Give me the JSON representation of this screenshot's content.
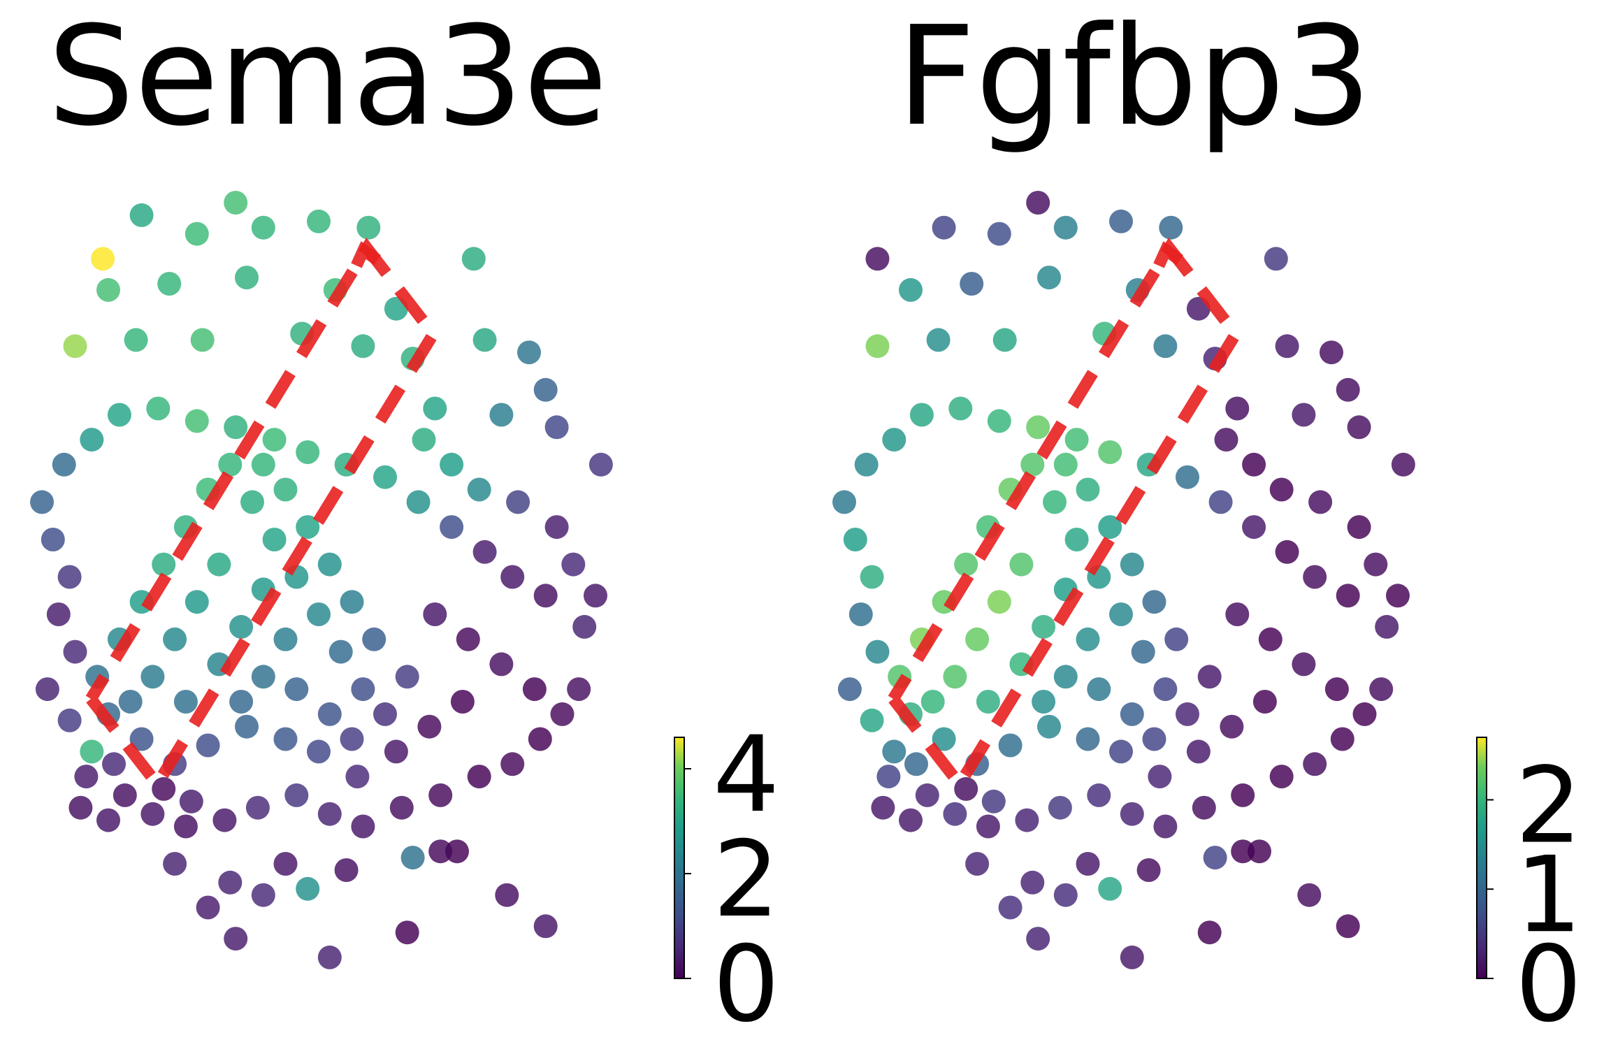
{
  "chart_data": [
    {
      "type": "scatter",
      "title": "Sema3e",
      "colormap": "viridis",
      "point_alpha": 0.82,
      "colorbar": {
        "min": 0,
        "max": 4.6,
        "ticks": [
          0,
          2,
          4
        ],
        "tick_labels": [
          "0",
          "2",
          "4"
        ]
      },
      "points": [
        [
          0.18,
          0.02,
          3.1
        ],
        [
          0.35,
          0.0,
          3.6
        ],
        [
          0.5,
          0.03,
          3.4
        ],
        [
          0.59,
          0.04,
          3.3
        ],
        [
          0.28,
          0.05,
          3.5
        ],
        [
          0.4,
          0.04,
          3.4
        ],
        [
          0.11,
          0.09,
          4.6
        ],
        [
          0.78,
          0.09,
          3.2
        ],
        [
          0.12,
          0.14,
          3.6
        ],
        [
          0.23,
          0.13,
          3.4
        ],
        [
          0.37,
          0.12,
          3.3
        ],
        [
          0.53,
          0.14,
          3.5
        ],
        [
          0.64,
          0.17,
          3.0
        ],
        [
          0.06,
          0.23,
          4.2
        ],
        [
          0.17,
          0.22,
          3.4
        ],
        [
          0.29,
          0.22,
          3.6
        ],
        [
          0.47,
          0.21,
          3.3
        ],
        [
          0.58,
          0.23,
          3.2
        ],
        [
          0.67,
          0.25,
          3.3
        ],
        [
          0.8,
          0.22,
          3.1
        ],
        [
          0.88,
          0.24,
          2.0
        ],
        [
          0.91,
          0.3,
          1.6
        ],
        [
          0.71,
          0.33,
          3.0
        ],
        [
          0.83,
          0.34,
          2.2
        ],
        [
          0.93,
          0.36,
          1.1
        ],
        [
          1.01,
          0.42,
          0.8
        ],
        [
          0.69,
          0.38,
          3.2
        ],
        [
          0.74,
          0.42,
          2.9
        ],
        [
          0.79,
          0.46,
          2.4
        ],
        [
          0.86,
          0.48,
          1.0
        ],
        [
          0.93,
          0.52,
          0.4
        ],
        [
          0.96,
          0.58,
          0.6
        ],
        [
          1.0,
          0.63,
          0.3
        ],
        [
          0.98,
          0.68,
          0.5
        ],
        [
          0.91,
          0.63,
          0.2
        ],
        [
          0.85,
          0.6,
          0.3
        ],
        [
          0.8,
          0.56,
          0.4
        ],
        [
          0.74,
          0.52,
          1.2
        ],
        [
          0.68,
          0.48,
          2.6
        ],
        [
          0.62,
          0.44,
          3.0
        ],
        [
          0.55,
          0.42,
          3.2
        ],
        [
          0.48,
          0.4,
          3.4
        ],
        [
          0.42,
          0.38,
          3.5
        ],
        [
          0.35,
          0.36,
          3.3
        ],
        [
          0.28,
          0.35,
          3.6
        ],
        [
          0.21,
          0.33,
          3.4
        ],
        [
          0.14,
          0.34,
          3.0
        ],
        [
          0.09,
          0.38,
          2.8
        ],
        [
          0.04,
          0.42,
          1.8
        ],
        [
          0.0,
          0.48,
          1.6
        ],
        [
          0.02,
          0.54,
          1.2
        ],
        [
          0.05,
          0.6,
          0.8
        ],
        [
          0.03,
          0.66,
          0.4
        ],
        [
          0.06,
          0.72,
          0.6
        ],
        [
          0.01,
          0.78,
          0.5
        ],
        [
          0.05,
          0.83,
          0.9
        ],
        [
          0.09,
          0.88,
          3.4
        ],
        [
          0.13,
          0.9,
          0.6
        ],
        [
          0.08,
          0.92,
          0.4
        ],
        [
          0.15,
          0.95,
          0.2
        ],
        [
          0.2,
          0.98,
          0.3
        ],
        [
          0.26,
          1.0,
          0.2
        ],
        [
          0.33,
          0.99,
          0.3
        ],
        [
          0.39,
          0.97,
          0.6
        ],
        [
          0.46,
          0.95,
          0.8
        ],
        [
          0.52,
          0.98,
          0.5
        ],
        [
          0.58,
          1.0,
          0.3
        ],
        [
          0.65,
          0.97,
          0.2
        ],
        [
          0.72,
          0.95,
          0.1
        ],
        [
          0.79,
          0.92,
          0.0
        ],
        [
          0.85,
          0.9,
          0.1
        ],
        [
          0.9,
          0.86,
          0.0
        ],
        [
          0.94,
          0.82,
          0.1
        ],
        [
          0.97,
          0.78,
          0.2
        ],
        [
          0.89,
          0.78,
          0.0
        ],
        [
          0.83,
          0.74,
          0.2
        ],
        [
          0.77,
          0.7,
          0.1
        ],
        [
          0.71,
          0.66,
          0.3
        ],
        [
          0.76,
          0.8,
          0.0
        ],
        [
          0.7,
          0.84,
          0.1
        ],
        [
          0.64,
          0.88,
          0.3
        ],
        [
          0.57,
          0.92,
          0.6
        ],
        [
          0.5,
          0.88,
          1.1
        ],
        [
          0.44,
          0.86,
          1.4
        ],
        [
          0.37,
          0.84,
          1.6
        ],
        [
          0.3,
          0.87,
          1.2
        ],
        [
          0.24,
          0.9,
          0.9
        ],
        [
          0.18,
          0.86,
          1.3
        ],
        [
          0.12,
          0.82,
          1.7
        ],
        [
          0.1,
          0.76,
          1.9
        ],
        [
          0.14,
          0.7,
          2.4
        ],
        [
          0.18,
          0.64,
          2.9
        ],
        [
          0.22,
          0.58,
          3.2
        ],
        [
          0.26,
          0.52,
          3.3
        ],
        [
          0.3,
          0.46,
          3.5
        ],
        [
          0.34,
          0.42,
          3.4
        ],
        [
          0.38,
          0.48,
          3.2
        ],
        [
          0.42,
          0.54,
          3.0
        ],
        [
          0.46,
          0.6,
          2.7
        ],
        [
          0.5,
          0.66,
          2.4
        ],
        [
          0.54,
          0.72,
          1.8
        ],
        [
          0.58,
          0.78,
          1.2
        ],
        [
          0.62,
          0.82,
          0.7
        ],
        [
          0.66,
          0.76,
          0.9
        ],
        [
          0.6,
          0.7,
          1.5
        ],
        [
          0.56,
          0.64,
          2.2
        ],
        [
          0.52,
          0.58,
          2.6
        ],
        [
          0.48,
          0.52,
          3.0
        ],
        [
          0.44,
          0.46,
          3.3
        ],
        [
          0.4,
          0.42,
          3.4
        ],
        [
          0.32,
          0.58,
          3.1
        ],
        [
          0.28,
          0.64,
          2.8
        ],
        [
          0.24,
          0.7,
          2.4
        ],
        [
          0.2,
          0.76,
          2.1
        ],
        [
          0.16,
          0.8,
          1.8
        ],
        [
          0.26,
          0.8,
          1.9
        ],
        [
          0.32,
          0.74,
          2.3
        ],
        [
          0.36,
          0.68,
          2.6
        ],
        [
          0.4,
          0.62,
          2.8
        ],
        [
          0.44,
          0.7,
          2.2
        ],
        [
          0.4,
          0.76,
          1.9
        ],
        [
          0.36,
          0.8,
          1.7
        ],
        [
          0.46,
          0.78,
          1.6
        ],
        [
          0.52,
          0.82,
          1.3
        ],
        [
          0.56,
          0.86,
          0.9
        ],
        [
          0.27,
          0.96,
          0.4
        ],
        [
          0.44,
          1.06,
          0.3
        ],
        [
          0.55,
          1.07,
          0.2
        ],
        [
          0.34,
          1.09,
          0.5
        ],
        [
          0.72,
          1.04,
          0.1
        ],
        [
          0.84,
          1.11,
          0.2
        ],
        [
          0.91,
          1.16,
          0.3
        ],
        [
          0.07,
          0.97,
          0.2
        ],
        [
          0.35,
          1.18,
          0.4
        ],
        [
          0.52,
          1.21,
          0.5
        ],
        [
          0.66,
          1.17,
          0.0
        ],
        [
          0.75,
          1.04,
          0.0
        ],
        [
          0.4,
          1.11,
          0.6
        ],
        [
          0.48,
          1.1,
          2.6
        ],
        [
          0.67,
          1.05,
          1.9
        ],
        [
          0.24,
          1.06,
          0.5
        ],
        [
          0.3,
          1.13,
          0.4
        ],
        [
          0.22,
          0.94,
          0.1
        ],
        [
          0.12,
          0.99,
          0.3
        ]
      ]
    },
    {
      "type": "scatter",
      "title": "Fgfbp3",
      "colormap": "viridis",
      "point_alpha": 0.82,
      "colorbar": {
        "min": 0,
        "max": 2.7,
        "ticks": [
          0,
          1,
          2
        ],
        "tick_labels": [
          "0",
          "1",
          "2"
        ]
      },
      "points": [
        [
          0.35,
          0.0,
          0.1
        ],
        [
          0.18,
          0.04,
          0.6
        ],
        [
          0.28,
          0.05,
          0.7
        ],
        [
          0.5,
          0.03,
          0.9
        ],
        [
          0.59,
          0.04,
          1.0
        ],
        [
          0.78,
          0.09,
          0.5
        ],
        [
          0.06,
          0.09,
          0.1
        ],
        [
          0.4,
          0.04,
          1.3
        ],
        [
          0.12,
          0.14,
          1.6
        ],
        [
          0.23,
          0.13,
          0.9
        ],
        [
          0.37,
          0.12,
          1.4
        ],
        [
          0.53,
          0.14,
          1.3
        ],
        [
          0.64,
          0.17,
          0.2
        ],
        [
          0.06,
          0.23,
          2.4
        ],
        [
          0.17,
          0.22,
          1.5
        ],
        [
          0.29,
          0.22,
          1.8
        ],
        [
          0.47,
          0.21,
          2.0
        ],
        [
          0.58,
          0.23,
          1.2
        ],
        [
          0.67,
          0.25,
          0.3
        ],
        [
          0.8,
          0.23,
          0.2
        ],
        [
          0.88,
          0.24,
          0.1
        ],
        [
          0.91,
          0.3,
          0.1
        ],
        [
          0.71,
          0.33,
          0.1
        ],
        [
          0.83,
          0.34,
          0.2
        ],
        [
          0.93,
          0.36,
          0.1
        ],
        [
          1.01,
          0.42,
          0.1
        ],
        [
          0.69,
          0.38,
          0.1
        ],
        [
          0.74,
          0.42,
          0.0
        ],
        [
          0.79,
          0.46,
          0.0
        ],
        [
          0.86,
          0.48,
          0.1
        ],
        [
          0.93,
          0.52,
          0.0
        ],
        [
          0.96,
          0.58,
          0.1
        ],
        [
          1.0,
          0.63,
          0.0
        ],
        [
          0.98,
          0.68,
          0.2
        ],
        [
          0.91,
          0.63,
          0.0
        ],
        [
          0.85,
          0.6,
          0.1
        ],
        [
          0.8,
          0.56,
          0.0
        ],
        [
          0.74,
          0.52,
          0.2
        ],
        [
          0.68,
          0.48,
          0.6
        ],
        [
          0.62,
          0.44,
          1.1
        ],
        [
          0.55,
          0.42,
          1.8
        ],
        [
          0.48,
          0.4,
          2.2
        ],
        [
          0.42,
          0.38,
          2.1
        ],
        [
          0.35,
          0.36,
          2.3
        ],
        [
          0.28,
          0.35,
          2.0
        ],
        [
          0.21,
          0.33,
          1.9
        ],
        [
          0.14,
          0.34,
          1.8
        ],
        [
          0.09,
          0.38,
          1.6
        ],
        [
          0.04,
          0.42,
          1.4
        ],
        [
          0.0,
          0.48,
          1.2
        ],
        [
          0.02,
          0.54,
          1.7
        ],
        [
          0.05,
          0.6,
          1.9
        ],
        [
          0.03,
          0.66,
          1.1
        ],
        [
          0.06,
          0.72,
          1.4
        ],
        [
          0.01,
          0.78,
          0.9
        ],
        [
          0.05,
          0.83,
          1.8
        ],
        [
          0.09,
          0.88,
          1.2
        ],
        [
          0.13,
          0.9,
          1.0
        ],
        [
          0.08,
          0.92,
          0.6
        ],
        [
          0.15,
          0.95,
          0.3
        ],
        [
          0.2,
          0.98,
          0.4
        ],
        [
          0.26,
          1.0,
          0.2
        ],
        [
          0.33,
          0.99,
          0.3
        ],
        [
          0.39,
          0.97,
          0.5
        ],
        [
          0.46,
          0.95,
          0.4
        ],
        [
          0.52,
          0.98,
          0.3
        ],
        [
          0.58,
          1.0,
          0.2
        ],
        [
          0.65,
          0.97,
          0.1
        ],
        [
          0.72,
          0.95,
          0.0
        ],
        [
          0.79,
          0.92,
          0.0
        ],
        [
          0.85,
          0.9,
          0.1
        ],
        [
          0.9,
          0.86,
          0.0
        ],
        [
          0.94,
          0.82,
          0.0
        ],
        [
          0.97,
          0.78,
          0.1
        ],
        [
          0.89,
          0.78,
          0.0
        ],
        [
          0.83,
          0.74,
          0.1
        ],
        [
          0.77,
          0.7,
          0.0
        ],
        [
          0.71,
          0.66,
          0.1
        ],
        [
          0.76,
          0.8,
          0.0
        ],
        [
          0.7,
          0.84,
          0.1
        ],
        [
          0.64,
          0.88,
          0.2
        ],
        [
          0.57,
          0.92,
          0.3
        ],
        [
          0.5,
          0.88,
          0.6
        ],
        [
          0.44,
          0.86,
          1.0
        ],
        [
          0.37,
          0.84,
          1.4
        ],
        [
          0.3,
          0.87,
          1.1
        ],
        [
          0.24,
          0.9,
          0.9
        ],
        [
          0.18,
          0.86,
          1.5
        ],
        [
          0.12,
          0.82,
          1.9
        ],
        [
          0.1,
          0.76,
          2.2
        ],
        [
          0.14,
          0.7,
          2.4
        ],
        [
          0.18,
          0.64,
          2.3
        ],
        [
          0.22,
          0.58,
          2.2
        ],
        [
          0.26,
          0.52,
          2.1
        ],
        [
          0.3,
          0.46,
          2.3
        ],
        [
          0.34,
          0.42,
          2.2
        ],
        [
          0.38,
          0.48,
          2.0
        ],
        [
          0.42,
          0.54,
          1.8
        ],
        [
          0.46,
          0.6,
          1.6
        ],
        [
          0.5,
          0.66,
          1.4
        ],
        [
          0.54,
          0.72,
          1.0
        ],
        [
          0.58,
          0.78,
          0.6
        ],
        [
          0.62,
          0.82,
          0.3
        ],
        [
          0.66,
          0.76,
          0.2
        ],
        [
          0.6,
          0.7,
          0.6
        ],
        [
          0.56,
          0.64,
          1.0
        ],
        [
          0.52,
          0.58,
          1.4
        ],
        [
          0.48,
          0.52,
          1.7
        ],
        [
          0.44,
          0.46,
          1.9
        ],
        [
          0.4,
          0.42,
          2.1
        ],
        [
          0.32,
          0.58,
          2.2
        ],
        [
          0.28,
          0.64,
          2.4
        ],
        [
          0.24,
          0.7,
          2.3
        ],
        [
          0.2,
          0.76,
          2.2
        ],
        [
          0.16,
          0.8,
          2.0
        ],
        [
          0.26,
          0.8,
          1.9
        ],
        [
          0.32,
          0.74,
          2.0
        ],
        [
          0.36,
          0.68,
          1.9
        ],
        [
          0.4,
          0.62,
          1.7
        ],
        [
          0.44,
          0.7,
          1.5
        ],
        [
          0.4,
          0.76,
          1.4
        ],
        [
          0.36,
          0.8,
          1.5
        ],
        [
          0.46,
          0.78,
          1.2
        ],
        [
          0.52,
          0.82,
          0.9
        ],
        [
          0.56,
          0.86,
          0.6
        ],
        [
          0.27,
          0.96,
          0.5
        ],
        [
          0.44,
          1.06,
          0.2
        ],
        [
          0.55,
          1.07,
          0.1
        ],
        [
          0.34,
          1.09,
          0.3
        ],
        [
          0.72,
          1.04,
          0.0
        ],
        [
          0.84,
          1.11,
          0.1
        ],
        [
          0.91,
          1.16,
          0.0
        ],
        [
          0.07,
          0.97,
          0.2
        ],
        [
          0.35,
          1.18,
          0.3
        ],
        [
          0.52,
          1.21,
          0.2
        ],
        [
          0.66,
          1.17,
          0.0
        ],
        [
          0.75,
          1.04,
          0.0
        ],
        [
          0.4,
          1.11,
          0.4
        ],
        [
          0.48,
          1.1,
          1.8
        ],
        [
          0.67,
          1.05,
          0.6
        ],
        [
          0.24,
          1.06,
          0.3
        ],
        [
          0.3,
          1.13,
          0.4
        ],
        [
          0.22,
          0.94,
          0.1
        ],
        [
          0.12,
          0.99,
          0.2
        ]
      ]
    }
  ]
}
